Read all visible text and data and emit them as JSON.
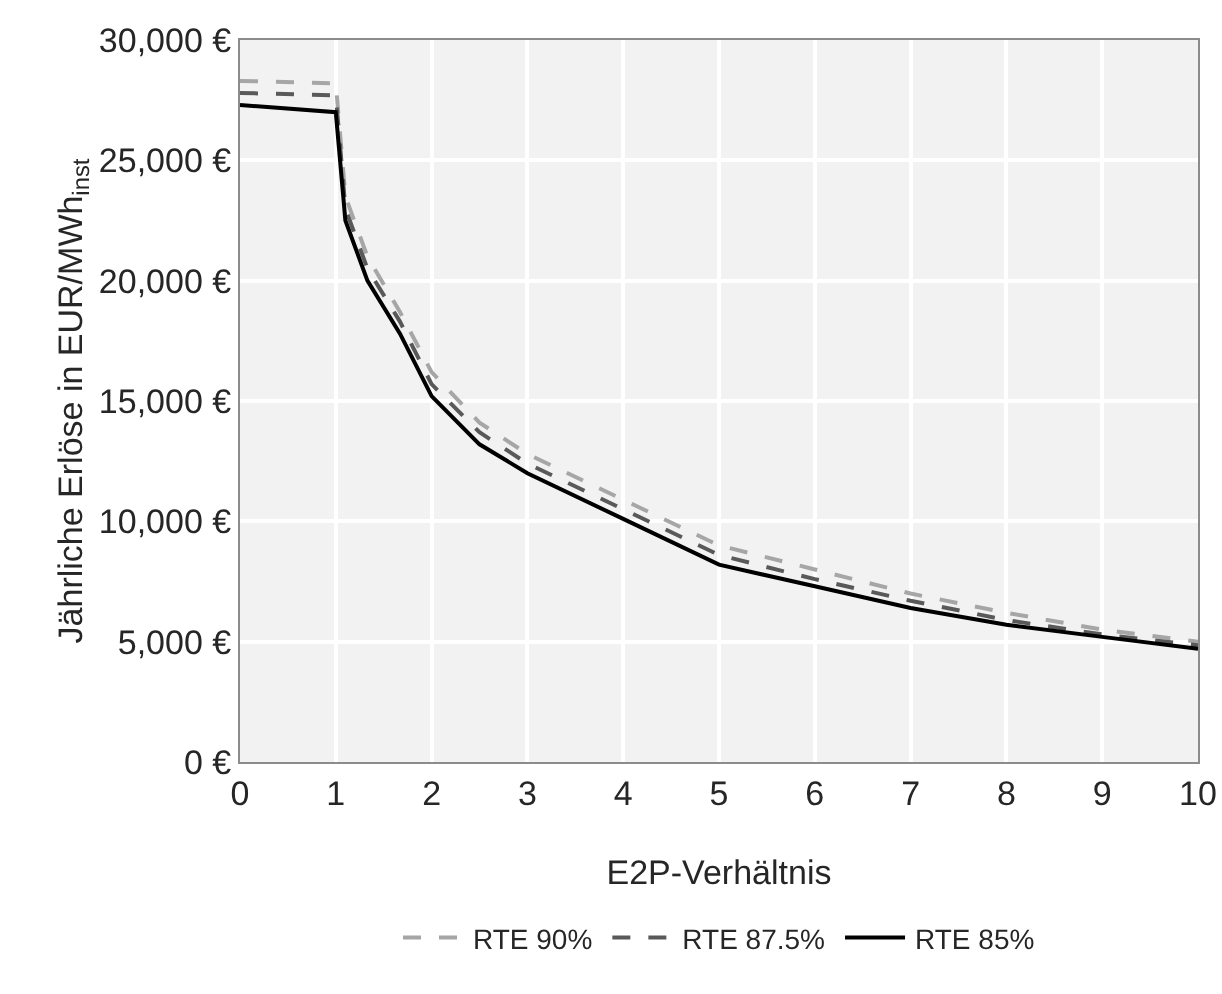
{
  "chart_data": {
    "type": "line",
    "xlabel": "E2P-Verhältnis",
    "ylabel": "Jährliche Erlöse in EUR/MWh$_{inst}$",
    "x": [
      0,
      1,
      1.1,
      1.33,
      1.67,
      2,
      2.5,
      3,
      4,
      5,
      6,
      7,
      8,
      9,
      10
    ],
    "series": [
      {
        "name": "RTE 90%",
        "color": "#a6a6a6",
        "line_style": "dashed",
        "values": [
          28300,
          28200,
          23500,
          21000,
          18700,
          16200,
          14100,
          12800,
          10900,
          9000,
          8000,
          7000,
          6200,
          5500,
          5000
        ]
      },
      {
        "name": "RTE 87.5%",
        "color": "#595959",
        "line_style": "dashed",
        "values": [
          27800,
          27700,
          23000,
          20500,
          18300,
          15700,
          13700,
          12400,
          10500,
          8600,
          7600,
          6700,
          5900,
          5300,
          4850
        ]
      },
      {
        "name": "RTE 85%",
        "color": "#000000",
        "line_style": "solid",
        "values": [
          27300,
          27000,
          22500,
          20000,
          17800,
          15200,
          13200,
          12000,
          10100,
          8200,
          7300,
          6400,
          5700,
          5200,
          4700
        ]
      }
    ],
    "xlim": [
      0,
      10
    ],
    "xticks": [
      0,
      1,
      2,
      3,
      4,
      5,
      6,
      7,
      8,
      9,
      10
    ],
    "ylim": [
      0,
      30000
    ],
    "yticks": [
      {
        "value": 0,
        "label": "0 €"
      },
      {
        "value": 5000,
        "label": "5,000 €"
      },
      {
        "value": 10000,
        "label": "10,000 €"
      },
      {
        "value": 15000,
        "label": "15,000 €"
      },
      {
        "value": 20000,
        "label": "20,000 €"
      },
      {
        "value": 25000,
        "label": "25,000 €"
      },
      {
        "value": 30000,
        "label": "30,000 €"
      }
    ],
    "grid": true,
    "legend": "bottom",
    "marker": "none"
  }
}
